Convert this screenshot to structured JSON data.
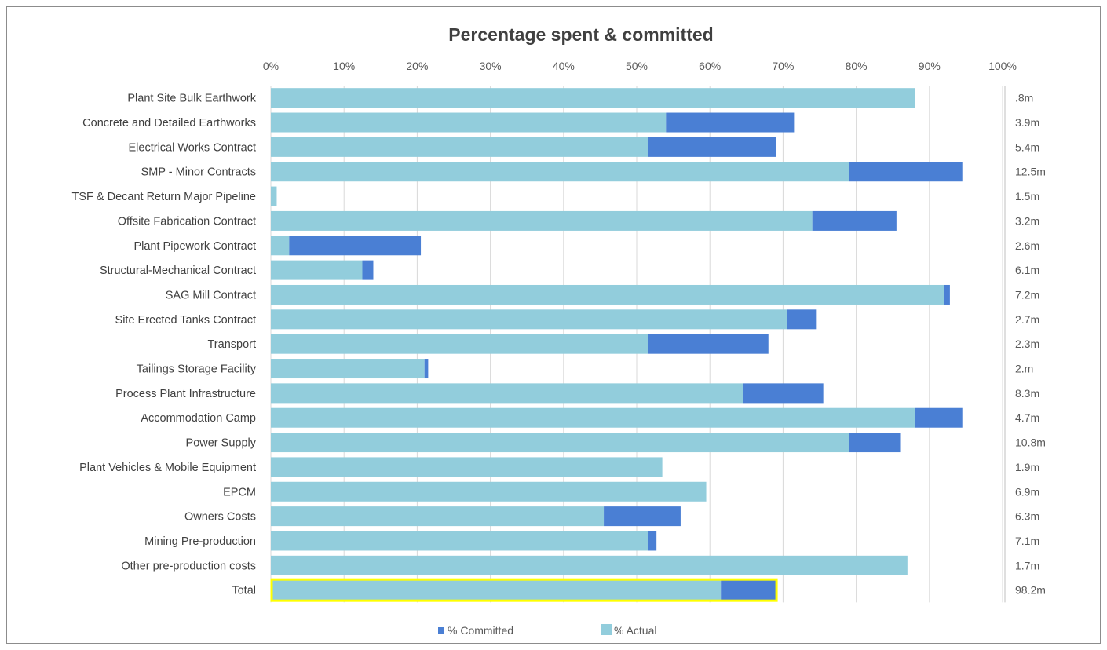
{
  "chart_data": {
    "type": "bar",
    "orientation": "horizontal",
    "stacked": true,
    "title": "Percentage spent & committed",
    "xlim": [
      0,
      100
    ],
    "x_ticks": [
      "0%",
      "10%",
      "20%",
      "30%",
      "40%",
      "50%",
      "60%",
      "70%",
      "80%",
      "90%",
      "100%"
    ],
    "grid": true,
    "legend_position": "bottom",
    "categories": [
      "Plant Site Bulk Earthwork",
      "Concrete and Detailed Earthworks",
      "Electrical Works Contract",
      "SMP - Minor Contracts",
      "TSF & Decant Return Major Pipeline",
      "Offsite Fabrication Contract",
      "Plant Pipework Contract",
      "Structural-Mechanical Contract",
      "SAG Mill Contract",
      "Site Erected Tanks Contract",
      "Transport",
      "Tailings Storage Facility",
      "Process Plant Infrastructure",
      "Accommodation Camp",
      "Power Supply",
      "Plant Vehicles & Mobile Equipment",
      "EPCM",
      "Owners Costs",
      "Mining Pre-production",
      "Other pre-production costs",
      "Total"
    ],
    "series": [
      {
        "name": "% Actual",
        "color": "#92cddc",
        "values": [
          88,
          54,
          51.5,
          79,
          0.8,
          74,
          2.5,
          12.5,
          92,
          70.5,
          51.5,
          21,
          64.5,
          88,
          79,
          53.5,
          59.5,
          45.5,
          51.5,
          87,
          61.5
        ]
      },
      {
        "name": "% Committed",
        "color": "#4a7fd4",
        "values": [
          0,
          17.5,
          17.5,
          15.5,
          0,
          11.5,
          18,
          1.5,
          0.8,
          4,
          16.5,
          0.5,
          11,
          6.5,
          7,
          0,
          0,
          10.5,
          1.2,
          0,
          7.5
        ]
      }
    ],
    "amounts": [
      ".8m",
      "3.9m",
      "5.4m",
      "12.5m",
      "1.5m",
      "3.2m",
      "2.6m",
      "6.1m",
      "7.2m",
      "2.7m",
      "2.3m",
      "2.m",
      "8.3m",
      "4.7m",
      "10.8m",
      "1.9m",
      "6.9m",
      "6.3m",
      "7.1m",
      "1.7m",
      "98.2m"
    ],
    "highlight": {
      "category": "Total",
      "color": "#ffff00"
    }
  }
}
